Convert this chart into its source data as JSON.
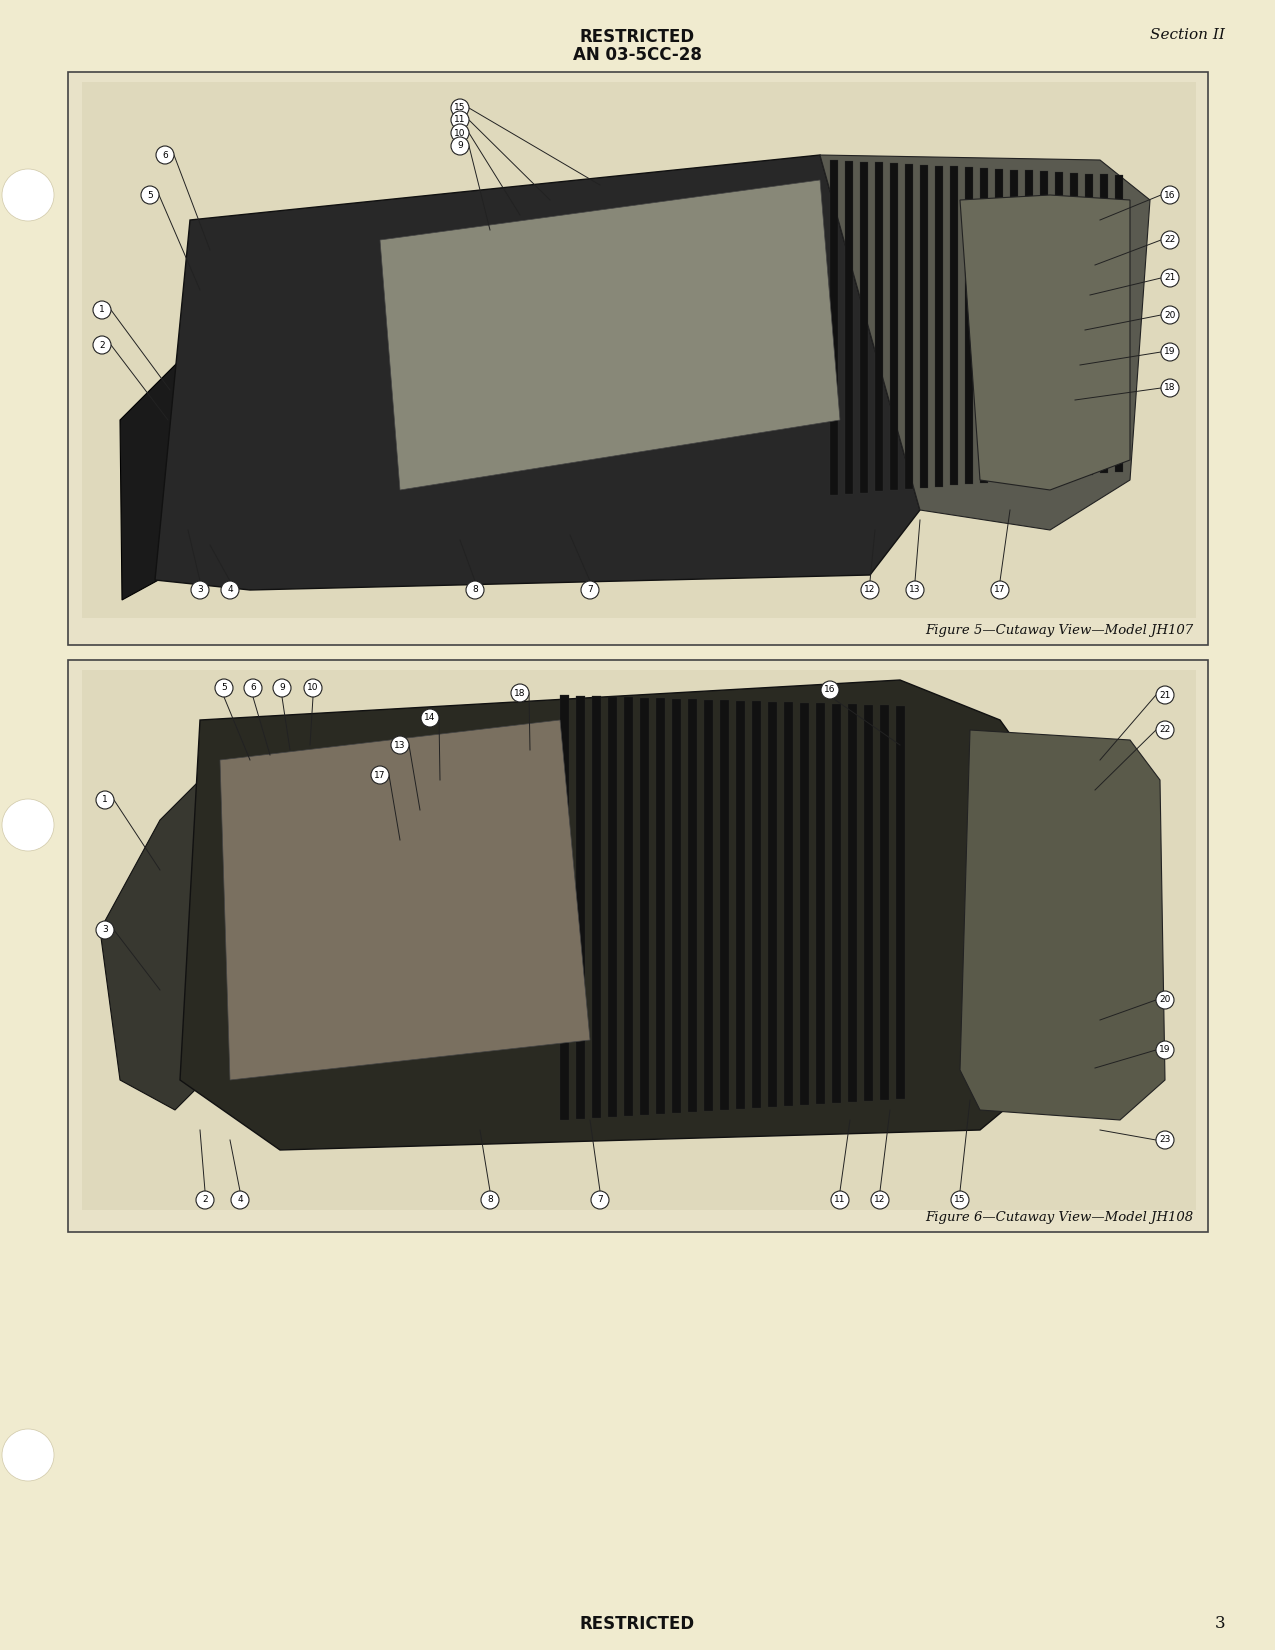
{
  "page_background": "#f0ebcf",
  "text_color": "#111111",
  "header_restricted": "RESTRICTED",
  "header_doc_number": "AN 03-5CC-28",
  "section_label": "Section II",
  "footer_restricted": "RESTRICTED",
  "page_number": "3",
  "fig1_caption": "Figure 5—Cutaway View—Model JH107",
  "fig2_caption": "Figure 6—Cutaway View—Model JH108",
  "box_edge_color": "#444444",
  "box_bg": "#e8e2c8",
  "punch_hole_color": "#ffffff",
  "punch_hole_edge": "#d0c8a8"
}
